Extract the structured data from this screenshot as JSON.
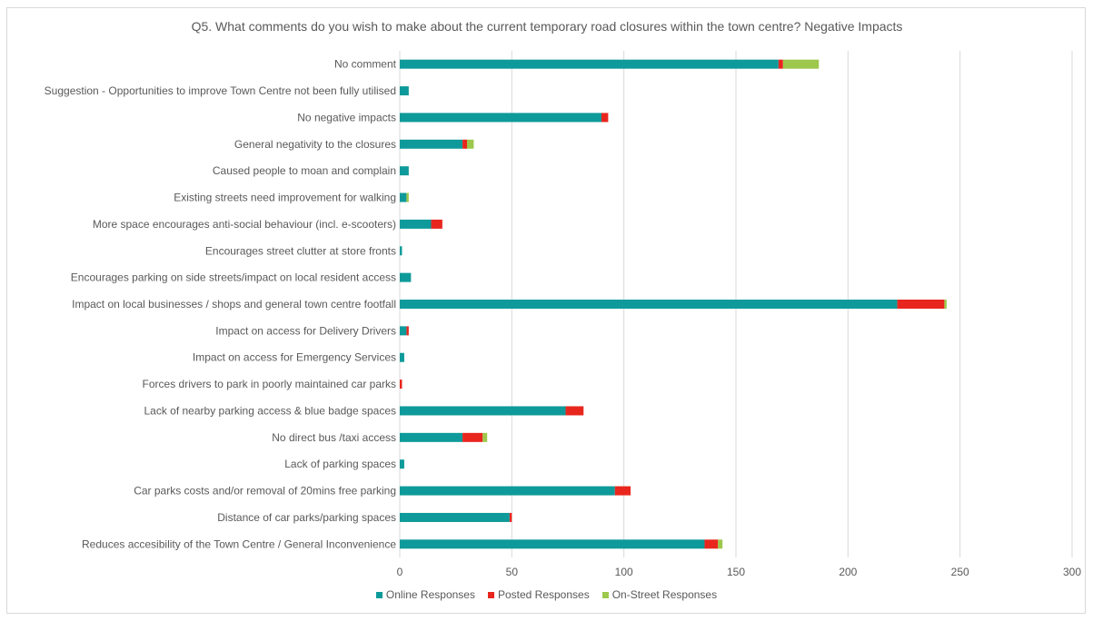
{
  "chart_data": {
    "type": "bar",
    "orientation": "horizontal",
    "stacked": true,
    "title": "Q5. What comments do you wish to make about the current temporary road closures within the town centre? Negative Impacts",
    "xlabel": "",
    "ylabel": "",
    "xlim": [
      0,
      300
    ],
    "xticks": [
      0,
      50,
      100,
      150,
      200,
      250,
      300
    ],
    "grid": "vertical",
    "legend_position": "bottom",
    "categories": [
      "No comment",
      "Suggestion - Opportunities to improve Town Centre not been fully utilised",
      "No negative impacts",
      "General negativity to the closures",
      "Caused people to moan and complain",
      "Existing streets need improvement for walking",
      "More space encourages anti-social behaviour (incl. e-scooters)",
      "Encourages street clutter at store fronts",
      "Encourages parking on side streets/impact on local resident access",
      "Impact on local businesses / shops and general town centre footfall",
      "Impact on access for Delivery Drivers",
      "Impact on access for Emergency Services",
      "Forces drivers to park in poorly maintained car parks",
      "Lack of nearby parking access & blue badge spaces",
      "No direct bus /taxi access",
      "Lack of parking spaces",
      "Car parks costs and/or removal of 20mins free parking",
      "Distance of car parks/parking spaces",
      "Reduces accesibility of the Town Centre / General Inconvenience"
    ],
    "series": [
      {
        "name": "Online Responses",
        "color": "#0e9a9a",
        "values": [
          169,
          4,
          90,
          28,
          4,
          3,
          14,
          1,
          5,
          222,
          3,
          2,
          0,
          74,
          28,
          2,
          96,
          49,
          136
        ]
      },
      {
        "name": "Posted Responses",
        "color": "#e8261e",
        "values": [
          2,
          0,
          3,
          2,
          0,
          0,
          5,
          0,
          0,
          21,
          1,
          0,
          1,
          8,
          9,
          0,
          7,
          1,
          6
        ]
      },
      {
        "name": "On-Street Responses",
        "color": "#9dc84b",
        "values": [
          16,
          0,
          0,
          3,
          0,
          1,
          0,
          0,
          0,
          1,
          0,
          0,
          0,
          0,
          2,
          0,
          0,
          0,
          2
        ]
      }
    ]
  }
}
